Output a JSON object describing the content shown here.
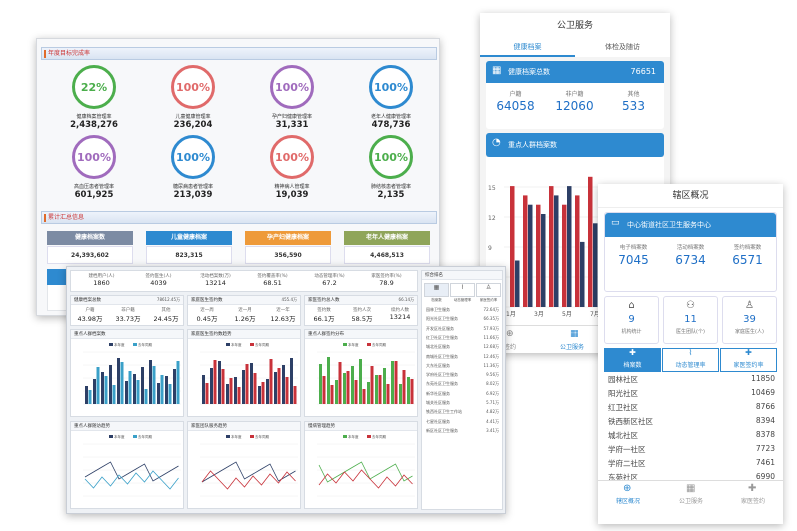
{
  "p1": {
    "header": "年度目标完成率",
    "circles": [
      {
        "pct": "22%",
        "label": "健康档案管理率",
        "value": "2,438,276",
        "color": "#4cae4c"
      },
      {
        "pct": "100%",
        "label": "儿童健康管理率",
        "value": "236,204",
        "color": "#e06a6a"
      },
      {
        "pct": "100%",
        "label": "孕产妇健康管理率",
        "value": "31,331",
        "color": "#a06bbd"
      },
      {
        "pct": "100%",
        "label": "老年人健康管理率",
        "value": "478,736",
        "color": "#2e8ad0"
      },
      {
        "pct": "100%",
        "label": "高血压患者管理率",
        "value": "601,925",
        "color": "#a06bbd"
      },
      {
        "pct": "100%",
        "label": "糖尿病患者管理率",
        "value": "213,039",
        "color": "#2e8ad0"
      },
      {
        "pct": "100%",
        "label": "精神病人管理率",
        "value": "19,039",
        "color": "#e06a6a"
      },
      {
        "pct": "100%",
        "label": "肺结核患者管理率",
        "value": "2,135",
        "color": "#4cae4c"
      }
    ],
    "header2": "累计汇总信息",
    "cats": [
      {
        "label": "健康档案数",
        "value": "24,393,602",
        "color": "#7c8ba3"
      },
      {
        "label": "儿童健康档案",
        "value": "823,315",
        "color": "#2e8ad0"
      },
      {
        "label": "孕产妇健康档案",
        "value": "356,590",
        "color": "#ee9a3a"
      },
      {
        "label": "老年人健康档案",
        "value": "4,468,513",
        "color": "#8fa55a"
      }
    ]
  },
  "p2": {
    "title": "公卫服务",
    "tabs": [
      "健康档案",
      "体检及随访"
    ],
    "card_label": "健康档案总数",
    "card_value": "76651",
    "sub": [
      {
        "label": "户籍",
        "value": "64058"
      },
      {
        "label": "非户籍",
        "value": "12060"
      },
      {
        "label": "其他",
        "value": "533"
      }
    ],
    "card2": "重点人群档案数",
    "yticks": [
      "15",
      "12",
      "9",
      "6",
      "3"
    ],
    "xticks": [
      "1月",
      "3月",
      "5月",
      "7月"
    ],
    "bottom": [
      {
        "label": "签约"
      },
      {
        "label": "公卫服务"
      }
    ]
  },
  "p3": {
    "title": "辖区概况",
    "center": "中心街道社区卫生服务中心",
    "stats": [
      {
        "label": "电子档案数",
        "value": "7045"
      },
      {
        "label": "活动档案数",
        "value": "6734"
      },
      {
        "label": "签约档案数",
        "value": "6571"
      }
    ],
    "tiles": [
      {
        "value": "9",
        "label": "机构统计"
      },
      {
        "value": "11",
        "label": "医生团队(个)"
      },
      {
        "value": "39",
        "label": "家庭医生(人)"
      }
    ],
    "tabs": [
      "档案数",
      "动态管理率",
      "家医签约率"
    ],
    "rows": [
      {
        "name": "园林社区",
        "value": "11850"
      },
      {
        "name": "阳光社区",
        "value": "10469"
      },
      {
        "name": "红卫社区",
        "value": "8766"
      },
      {
        "name": "铁西新区社区",
        "value": "8394"
      },
      {
        "name": "城北社区",
        "value": "8378"
      },
      {
        "name": "学府一社区",
        "value": "7723"
      },
      {
        "name": "学府二社区",
        "value": "7461"
      },
      {
        "name": "东苑社区",
        "value": "6990"
      }
    ],
    "bottom": [
      "辖区概况",
      "公卫服务",
      "家医签约"
    ]
  },
  "p4": {
    "top": [
      {
        "l": "建档用户(人)",
        "v": "1860"
      },
      {
        "l": "签约医生(人)",
        "v": "4039"
      },
      {
        "l": "活动档案数(万)",
        "v": "13214"
      },
      {
        "l": "签约覆盖率(%)",
        "v": "68.51"
      },
      {
        "l": "动态管理率(%)",
        "v": "67.2"
      },
      {
        "l": "家医签约率(%)",
        "v": "78.9"
      }
    ],
    "mid": [
      {
        "title": "健康档案总数",
        "total": "78612.45万",
        "items": [
          {
            "l": "户籍",
            "v": "43.98万"
          },
          {
            "l": "非户籍",
            "v": "33.73万"
          },
          {
            "l": "其他",
            "v": "24.45万"
          }
        ]
      },
      {
        "title": "家庭医生签约数",
        "total": "455.4万",
        "items": [
          {
            "l": "近一周",
            "v": "0.45万"
          },
          {
            "l": "近一月",
            "v": "1.26万"
          },
          {
            "l": "近一年",
            "v": "12.63万"
          }
        ]
      },
      {
        "title": "家医签约总人数",
        "total": "66.14万",
        "items": [
          {
            "l": "签约数",
            "v": "66.1万"
          },
          {
            "l": "签约人次",
            "v": "58.5万"
          },
          {
            "l": "续约人数",
            "v": "13214"
          }
        ]
      }
    ],
    "charts": [
      "重点人群档案数",
      "家庭医生签约数趋势",
      "重点人群签约分布",
      "重点人群随访趋势",
      "家医团队服务趋势",
      "慢病管理趋势"
    ],
    "legend": [
      "本年度",
      "去年同期"
    ],
    "side": {
      "title": "综合排名",
      "tabs": [
        "档案数",
        "动态管理率",
        "家医签约率"
      ],
      "rows": [
        {
          "n": "园林卫生服务",
          "v": "72.64万"
        },
        {
          "n": "阳光社区卫生服务",
          "v": "66.35万"
        },
        {
          "n": "开发区社区服务",
          "v": "57.93万"
        },
        {
          "n": "红卫社区卫生服务",
          "v": "11.66万"
        },
        {
          "n": "城北社区服务",
          "v": "12.68万"
        },
        {
          "n": "南城社区卫生服务",
          "v": "12.46万"
        },
        {
          "n": "大东社区服务",
          "v": "11.36万"
        },
        {
          "n": "学府社区卫生服务",
          "v": "9.56万"
        },
        {
          "n": "东苑社区卫生服务",
          "v": "8.02万"
        },
        {
          "n": "新华社区服务",
          "v": "6.92万"
        },
        {
          "n": "城关社区服务",
          "v": "5.71万"
        },
        {
          "n": "铁西社区卫生工作站",
          "v": "4.82万"
        },
        {
          "n": "七星社区服务",
          "v": "4.41万"
        },
        {
          "n": "新区社区卫生服务",
          "v": "3.41万"
        }
      ]
    }
  }
}
